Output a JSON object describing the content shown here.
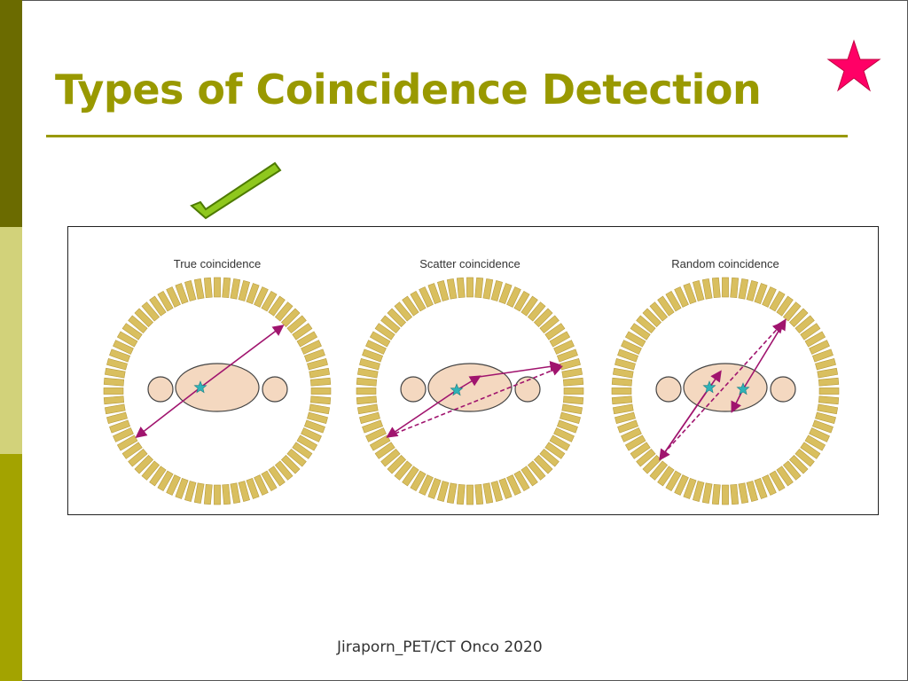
{
  "slide": {
    "title": "Types of Coincidence Detection",
    "footer": "Jiraporn_PET/CT Onco 2020"
  },
  "icons": {
    "star": "star-icon",
    "check": "checkmark-icon"
  },
  "diagram": {
    "panels": [
      {
        "label": "True coincidence"
      },
      {
        "label": "Scatter coincidence"
      },
      {
        "label": "Random coincidence"
      }
    ]
  },
  "colors": {
    "title": "#999900",
    "detector": "#d9bf5f",
    "body": "#f4d8c0",
    "line": "#a0146e",
    "source": "#2fb3b8",
    "star": "#ff0066"
  }
}
